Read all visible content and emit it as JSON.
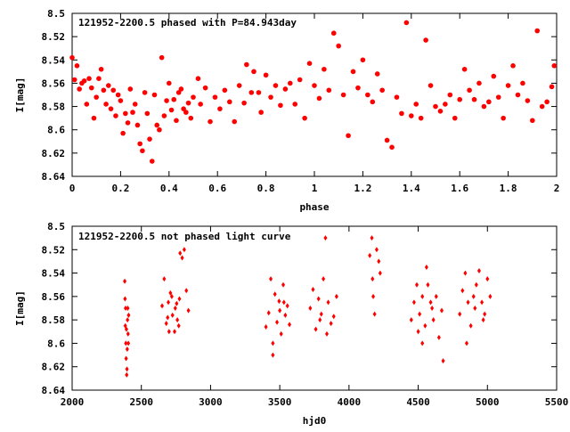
{
  "colors": {
    "marker": "#ff0000",
    "axis": "#000000",
    "background": "#ffffff"
  },
  "chart_data": [
    {
      "type": "scatter",
      "title": "121952-2200.5 phased with P=84.943day",
      "xlabel": "phase",
      "ylabel": "I[mag]",
      "xlim": [
        0,
        2
      ],
      "ylim": [
        8.5,
        8.64
      ],
      "y_inverted": true,
      "x_ticks": [
        "0",
        "0.2",
        "0.4",
        "0.6",
        "0.8",
        "1",
        "1.2",
        "1.4",
        "1.6",
        "1.8",
        "2"
      ],
      "y_ticks": [
        "8.5",
        "8.52",
        "8.54",
        "8.56",
        "8.58",
        "8.6",
        "8.62",
        "8.64"
      ],
      "grid": false,
      "legend": "none",
      "marker": "filled-circle",
      "series": [
        {
          "points": [
            [
              0.0,
              8.538
            ],
            [
              0.01,
              8.557
            ],
            [
              0.02,
              8.545
            ],
            [
              0.03,
              8.565
            ],
            [
              0.04,
              8.56
            ],
            [
              0.05,
              8.558
            ],
            [
              0.06,
              8.578
            ],
            [
              0.07,
              8.556
            ],
            [
              0.08,
              8.564
            ],
            [
              0.09,
              8.59
            ],
            [
              0.1,
              8.572
            ],
            [
              0.11,
              8.556
            ],
            [
              0.12,
              8.548
            ],
            [
              0.13,
              8.566
            ],
            [
              0.14,
              8.578
            ],
            [
              0.15,
              8.562
            ],
            [
              0.16,
              8.582
            ],
            [
              0.17,
              8.566
            ],
            [
              0.18,
              8.588
            ],
            [
              0.19,
              8.57
            ],
            [
              0.2,
              8.575
            ],
            [
              0.21,
              8.603
            ],
            [
              0.22,
              8.586
            ],
            [
              0.23,
              8.594
            ],
            [
              0.24,
              8.565
            ],
            [
              0.25,
              8.585
            ],
            [
              0.26,
              8.578
            ],
            [
              0.27,
              8.596
            ],
            [
              0.28,
              8.612
            ],
            [
              0.29,
              8.618
            ],
            [
              0.3,
              8.568
            ],
            [
              0.31,
              8.586
            ],
            [
              0.32,
              8.608
            ],
            [
              0.33,
              8.627
            ],
            [
              0.34,
              8.57
            ],
            [
              0.35,
              8.596
            ],
            [
              0.36,
              8.6
            ],
            [
              0.37,
              8.538
            ],
            [
              0.38,
              8.588
            ],
            [
              0.39,
              8.575
            ],
            [
              0.4,
              8.56
            ],
            [
              0.41,
              8.583
            ],
            [
              0.42,
              8.574
            ],
            [
              0.43,
              8.592
            ],
            [
              0.44,
              8.568
            ],
            [
              0.45,
              8.565
            ],
            [
              0.46,
              8.582
            ],
            [
              0.47,
              8.585
            ],
            [
              0.48,
              8.577
            ],
            [
              0.49,
              8.59
            ],
            [
              0.5,
              8.572
            ],
            [
              0.52,
              8.556
            ],
            [
              0.53,
              8.578
            ],
            [
              0.55,
              8.564
            ],
            [
              0.57,
              8.593
            ],
            [
              0.59,
              8.572
            ],
            [
              0.61,
              8.582
            ],
            [
              0.63,
              8.566
            ],
            [
              0.65,
              8.576
            ],
            [
              0.67,
              8.593
            ],
            [
              0.69,
              8.562
            ],
            [
              0.71,
              8.577
            ],
            [
              0.72,
              8.544
            ],
            [
              0.74,
              8.568
            ],
            [
              0.75,
              8.55
            ],
            [
              0.77,
              8.568
            ],
            [
              0.78,
              8.585
            ],
            [
              0.8,
              8.553
            ],
            [
              0.82,
              8.572
            ],
            [
              0.84,
              8.562
            ],
            [
              0.86,
              8.579
            ],
            [
              0.88,
              8.565
            ],
            [
              0.9,
              8.56
            ],
            [
              0.92,
              8.578
            ],
            [
              0.94,
              8.557
            ],
            [
              0.96,
              8.59
            ],
            [
              0.98,
              8.543
            ],
            [
              1.0,
              8.562
            ],
            [
              1.02,
              8.573
            ],
            [
              1.04,
              8.548
            ],
            [
              1.06,
              8.566
            ],
            [
              1.08,
              8.517
            ],
            [
              1.1,
              8.528
            ],
            [
              1.12,
              8.57
            ],
            [
              1.14,
              8.605
            ],
            [
              1.16,
              8.55
            ],
            [
              1.18,
              8.564
            ],
            [
              1.2,
              8.54
            ],
            [
              1.22,
              8.57
            ],
            [
              1.24,
              8.576
            ],
            [
              1.26,
              8.552
            ],
            [
              1.28,
              8.566
            ],
            [
              1.3,
              8.609
            ],
            [
              1.32,
              8.615
            ],
            [
              1.34,
              8.572
            ],
            [
              1.36,
              8.586
            ],
            [
              1.38,
              8.508
            ],
            [
              1.4,
              8.588
            ],
            [
              1.42,
              8.578
            ],
            [
              1.44,
              8.59
            ],
            [
              1.46,
              8.523
            ],
            [
              1.48,
              8.562
            ],
            [
              1.5,
              8.58
            ],
            [
              1.52,
              8.584
            ],
            [
              1.54,
              8.578
            ],
            [
              1.56,
              8.57
            ],
            [
              1.58,
              8.59
            ],
            [
              1.6,
              8.574
            ],
            [
              1.62,
              8.548
            ],
            [
              1.64,
              8.566
            ],
            [
              1.66,
              8.574
            ],
            [
              1.68,
              8.56
            ],
            [
              1.7,
              8.58
            ],
            [
              1.72,
              8.576
            ],
            [
              1.74,
              8.554
            ],
            [
              1.76,
              8.572
            ],
            [
              1.78,
              8.59
            ],
            [
              1.8,
              8.562
            ],
            [
              1.82,
              8.545
            ],
            [
              1.84,
              8.57
            ],
            [
              1.86,
              8.56
            ],
            [
              1.88,
              8.575
            ],
            [
              1.9,
              8.592
            ],
            [
              1.92,
              8.515
            ],
            [
              1.94,
              8.58
            ],
            [
              1.96,
              8.576
            ],
            [
              1.98,
              8.563
            ],
            [
              1.99,
              8.545
            ]
          ]
        }
      ]
    },
    {
      "type": "scatter",
      "title": "121952-2200.5 not phased light curve",
      "xlabel": "hjd0",
      "ylabel": "I[mag]",
      "xlim": [
        2000,
        5500
      ],
      "ylim": [
        8.5,
        8.64
      ],
      "y_inverted": true,
      "x_ticks": [
        "2000",
        "2500",
        "3000",
        "3500",
        "4000",
        "4500",
        "5000",
        "5500"
      ],
      "y_ticks": [
        "8.5",
        "8.52",
        "8.54",
        "8.56",
        "8.58",
        "8.6",
        "8.62",
        "8.64"
      ],
      "grid": false,
      "legend": "none",
      "marker": "diamond",
      "series": [
        {
          "points": [
            [
              2380,
              8.547
            ],
            [
              2382,
              8.562
            ],
            [
              2384,
              8.585
            ],
            [
              2386,
              8.57
            ],
            [
              2388,
              8.6
            ],
            [
              2390,
              8.613
            ],
            [
              2392,
              8.588
            ],
            [
              2394,
              8.627
            ],
            [
              2396,
              8.622
            ],
            [
              2398,
              8.605
            ],
            [
              2400,
              8.58
            ],
            [
              2402,
              8.57
            ],
            [
              2404,
              8.592
            ],
            [
              2406,
              8.6
            ],
            [
              2408,
              8.576
            ],
            [
              2650,
              8.568
            ],
            [
              2665,
              8.545
            ],
            [
              2680,
              8.583
            ],
            [
              2695,
              8.565
            ],
            [
              2710,
              8.557
            ],
            [
              2725,
              8.576
            ],
            [
              2740,
              8.59
            ],
            [
              2755,
              8.566
            ],
            [
              2770,
              8.585
            ],
            [
              2780,
              8.523
            ],
            [
              2795,
              8.527
            ],
            [
              2810,
              8.52
            ],
            [
              2825,
              8.555
            ],
            [
              2840,
              8.572
            ],
            [
              2700,
              8.59
            ],
            [
              2720,
              8.56
            ],
            [
              2760,
              8.58
            ],
            [
              2745,
              8.57
            ],
            [
              2690,
              8.578
            ],
            [
              2775,
              8.562
            ],
            [
              3400,
              8.586
            ],
            [
              3420,
              8.574
            ],
            [
              3435,
              8.545
            ],
            [
              3450,
              8.6
            ],
            [
              3465,
              8.558
            ],
            [
              3480,
              8.582
            ],
            [
              3495,
              8.564
            ],
            [
              3510,
              8.592
            ],
            [
              3525,
              8.55
            ],
            [
              3540,
              8.576
            ],
            [
              3555,
              8.568
            ],
            [
              3570,
              8.584
            ],
            [
              3450,
              8.61
            ],
            [
              3500,
              8.572
            ],
            [
              3530,
              8.565
            ],
            [
              3720,
              8.57
            ],
            [
              3740,
              8.554
            ],
            [
              3760,
              8.588
            ],
            [
              3780,
              8.562
            ],
            [
              3800,
              8.575
            ],
            [
              3815,
              8.545
            ],
            [
              3830,
              8.51
            ],
            [
              3850,
              8.565
            ],
            [
              3870,
              8.583
            ],
            [
              3890,
              8.577
            ],
            [
              3910,
              8.56
            ],
            [
              3790,
              8.58
            ],
            [
              3840,
              8.592
            ],
            [
              4150,
              8.525
            ],
            [
              4165,
              8.51
            ],
            [
              4175,
              8.56
            ],
            [
              4185,
              8.575
            ],
            [
              4200,
              8.52
            ],
            [
              4215,
              8.53
            ],
            [
              4225,
              8.54
            ],
            [
              4170,
              8.545
            ],
            [
              4450,
              8.58
            ],
            [
              4470,
              8.565
            ],
            [
              4490,
              8.55
            ],
            [
              4510,
              8.575
            ],
            [
              4530,
              8.56
            ],
            [
              4550,
              8.585
            ],
            [
              4570,
              8.55
            ],
            [
              4590,
              8.565
            ],
            [
              4610,
              8.58
            ],
            [
              4630,
              8.56
            ],
            [
              4650,
              8.595
            ],
            [
              4670,
              8.572
            ],
            [
              4530,
              8.6
            ],
            [
              4600,
              8.57
            ],
            [
              4680,
              8.615
            ],
            [
              4560,
              8.535
            ],
            [
              4500,
              8.59
            ],
            [
              4800,
              8.575
            ],
            [
              4820,
              8.555
            ],
            [
              4840,
              8.54
            ],
            [
              4860,
              8.565
            ],
            [
              4880,
              8.585
            ],
            [
              4900,
              8.56
            ],
            [
              4920,
              8.55
            ],
            [
              4940,
              8.538
            ],
            [
              4960,
              8.565
            ],
            [
              4980,
              8.575
            ],
            [
              5000,
              8.545
            ],
            [
              5020,
              8.56
            ],
            [
              4850,
              8.6
            ],
            [
              4910,
              8.57
            ],
            [
              4970,
              8.58
            ]
          ]
        }
      ]
    }
  ]
}
